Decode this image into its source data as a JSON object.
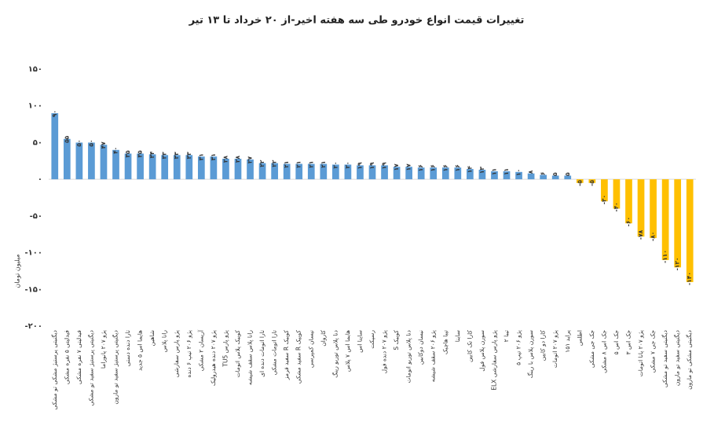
{
  "chart_data": {
    "type": "bar",
    "title": "تغییرات قیمت انواع خودرو طی سه هفته اخیر-از ۲۰ خرداد  تا ۱۳ تیر",
    "y_label": "میلیون تومان",
    "categories": [
      "دیگنیتی پرستیژ مشکی تو مشکی",
      "فیدلیتی ۵ نفره مشکی",
      "فیدلیتی ۷ نفره مشکی",
      "دیگنیتی پرستیژ سفید تو مشکی",
      "پژو ۲۰۷ پانوراما",
      "دیگنیتی پرستیژ سفید تو مارون",
      "تارا دنده دستی",
      "هایما اس ۵ جدید",
      "شاهین",
      "رانا پلاس",
      "پژو پارس سفارشی",
      "پژو ۲۰۶ تیپ ۶ دنده",
      "آریسان ۲ مشکی",
      "پژو ۲۰۷ دنده هیدرولیک",
      "پژو پارس TU5",
      "کوییک پلاس اتومات",
      "رانا پلاس سقف شیشه",
      "تارا اتومات دنده ای",
      "تارا اتومات مشکی",
      "کوییک R سفید فرمز",
      "کوییک R سفید مشکی",
      "نیسان کمپرسی",
      "کاروان",
      "دنا پلاس توربو رینگ",
      "هایما اس ۷ پلاس",
      "ساینا اس",
      "رسپکت",
      "پژو ۲۰۷ دنده فول",
      "کوییک S",
      "دنا پلاس توربو اتومات",
      "نیسان دوکابین",
      "پژو ۲۰۶ سقف شیشه",
      "تیبا هاچبک",
      "ساینا",
      "کارا تک کابین",
      "سورن پلاس فول",
      "پژو پارس سفارشی ELX",
      "تیبا ۲",
      "پژو ۲۰۶ تیپ ۵",
      "سورن پلاس با رینگ",
      "کارا دو کابین",
      "پژو ۲۰۷ اتومات",
      "پراید ۱۵۱",
      "اطلس",
      "جک جی مشکی",
      "جک اس ۸ مشکی",
      "جک اس ۵",
      "جک اس ۳",
      "پژو ۲۰۷ پانا اتومات",
      "جک جی ۷ مشکی",
      "دیگنیتی سفید تو مشکی",
      "دیگنیتی سفید تو مارون",
      "دیگنیتی مشکی تو مارون"
    ],
    "values": [
      90,
      55,
      50,
      50,
      47,
      40,
      35,
      35,
      34,
      33,
      33,
      33,
      31,
      31,
      28,
      28,
      27,
      22,
      22,
      21,
      21,
      21,
      21,
      20,
      20,
      19,
      19,
      19,
      17,
      17,
      16,
      16,
      16,
      16,
      14,
      13,
      11,
      11,
      10,
      8,
      6,
      5,
      5,
      -5,
      -5,
      -30,
      -40,
      -60,
      -78,
      -80,
      -110,
      -120,
      -140
    ],
    "value_labels": [
      "۹۰",
      "۵۵",
      "۵۰",
      "۵۰",
      "۴۷",
      "۴۰",
      "۳۵",
      "۳۵",
      "۳۴",
      "۳۳",
      "۳۳",
      "۳۳",
      "۳۱",
      "۳۱",
      "۲۸",
      "۲۸",
      "۲۷",
      "۲۲",
      "۲۲",
      "۲۱",
      "۲۱",
      "۲۱",
      "۲۱",
      "۲۰",
      "۲۰",
      "۱۹",
      "۱۹",
      "۱۹",
      "۱۷",
      "۱۷",
      "۱۶",
      "۱۶",
      "۱۶",
      "۱۶",
      "۱۴",
      "۱۳",
      "۱۱",
      "۱۱",
      "۱۰",
      "۸",
      "۶",
      "۵",
      "۵",
      "-۵",
      "-۵",
      "-۳۰",
      "-۴۰",
      "-۶۰",
      "-۷۸",
      "-۸۰",
      "-۱۱۰",
      "-۱۲۰",
      "-۱۴۰"
    ],
    "color": "#5b9bd5",
    "negative_color": "#ffc000",
    "ylim": [
      -200,
      150
    ],
    "yticks": [
      {
        "value": 150,
        "label": "۱۵۰"
      },
      {
        "value": 100,
        "label": "۱۰۰"
      },
      {
        "value": 50,
        "label": "۵۰"
      },
      {
        "value": 0,
        "label": "۰"
      },
      {
        "value": -50,
        "label": "-۵۰"
      },
      {
        "value": -100,
        "label": "-۱۰۰"
      },
      {
        "value": -150,
        "label": "-۱۵۰"
      },
      {
        "value": -200,
        "label": "-۲۰۰"
      }
    ],
    "grid": false
  }
}
